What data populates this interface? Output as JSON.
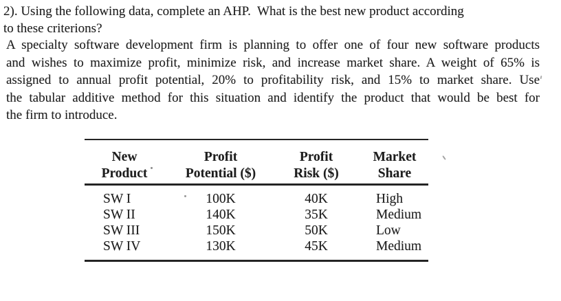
{
  "document": {
    "question": {
      "lines": [
        "2). Using the following data, complete an AHP.  What is the best new product according",
        "to these criterions?"
      ]
    },
    "description": {
      "lines": [
        "A specialty software development firm is planning to offer one of four new software products",
        "and wishes to maximize profit, minimize risk, and increase market share. A weight of 65% is",
        "assigned to annual profit potential, 20% to profitability risk, and 15% to market share. Use",
        "the tabular additive method for this situation and identify the product that would be best for",
        "the firm to introduce."
      ]
    },
    "table": {
      "headers": [
        {
          "line1": "New",
          "line2": "Product"
        },
        {
          "line1": "Profit",
          "line2": "Potential ($)"
        },
        {
          "line1": "Profit",
          "line2": "Risk ($)"
        },
        {
          "line1": "Market",
          "line2": "Share"
        }
      ],
      "rows": [
        {
          "product": "SW I",
          "profit_potential": "100K",
          "profit_risk": "40K",
          "market_share": "High"
        },
        {
          "product": "SW II",
          "profit_potential": "140K",
          "profit_risk": "35K",
          "market_share": "Medium"
        },
        {
          "product": "SW III",
          "profit_potential": "150K",
          "profit_risk": "50K",
          "market_share": "Low"
        },
        {
          "product": "SW IV",
          "profit_potential": "130K",
          "profit_risk": "45K",
          "market_share": "Medium"
        }
      ]
    },
    "colors": {
      "text": "#1e1e1e",
      "rule": "#242424",
      "background": "#ffffff"
    }
  }
}
